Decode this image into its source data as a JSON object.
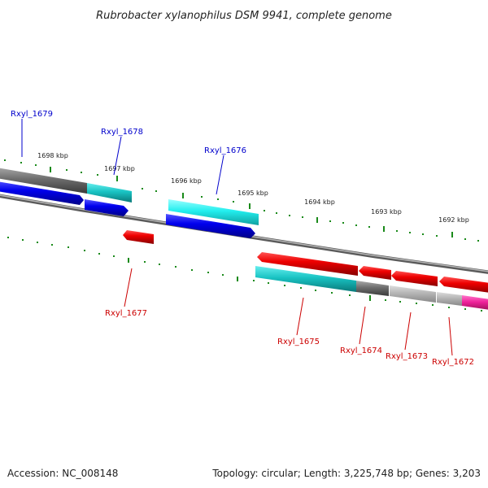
{
  "title": "Rubrobacter xylanophilus DSM 9941, complete genome",
  "footer": {
    "accession": "Accession: NC_008148",
    "summary": "Topology: circular; Length: 3,225,748 bp; Genes: 3,203"
  },
  "ticks": [
    "1698 kbp",
    "1697 kbp",
    "1696 kbp",
    "1695 kbp",
    "1694 kbp",
    "1693 kbp",
    "1692 kbp"
  ],
  "genes": [
    {
      "name": "Rxyl_1679",
      "strand": "+",
      "color": "#0000cc"
    },
    {
      "name": "Rxyl_1678",
      "strand": "+",
      "color": "#0000cc"
    },
    {
      "name": "Rxyl_1676",
      "strand": "+",
      "color": "#0000cc"
    },
    {
      "name": "Rxyl_1677",
      "strand": "-",
      "color": "#cc0000"
    },
    {
      "name": "Rxyl_1675",
      "strand": "-",
      "color": "#cc0000"
    },
    {
      "name": "Rxyl_1674",
      "strand": "-",
      "color": "#cc0000"
    },
    {
      "name": "Rxyl_1673",
      "strand": "-",
      "color": "#cc0000"
    },
    {
      "name": "Rxyl_1672",
      "strand": "-",
      "color": "#cc0000"
    }
  ],
  "colors": {
    "forward_gene": "#0000ee",
    "reverse_gene": "#ee0000",
    "cds_cyan": "#19c3c3",
    "cds_gray": "#777777",
    "cds_magenta": "#ee2299",
    "tick": "#1a8a1a",
    "backbone": "#888888"
  }
}
